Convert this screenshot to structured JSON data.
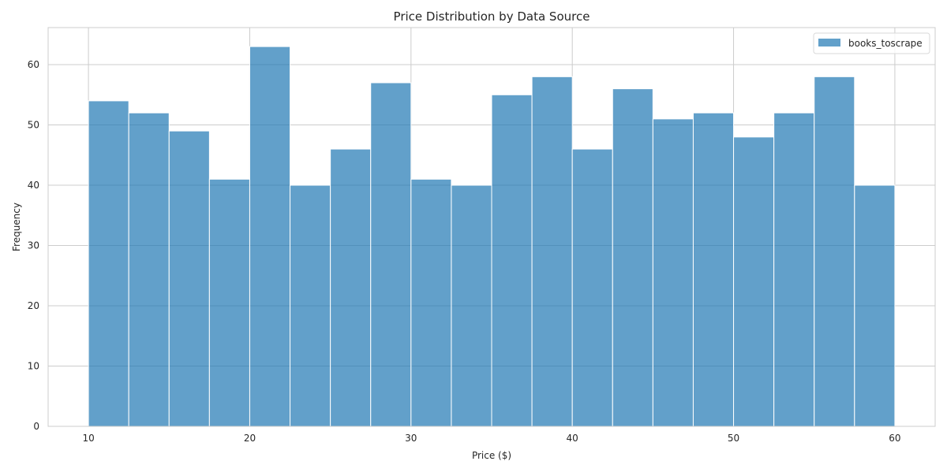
{
  "chart_data": {
    "type": "bar",
    "subtype": "histogram",
    "title": "Price Distribution by Data Source",
    "xlabel": "Price ($)",
    "ylabel": "Frequency",
    "xlim": [
      7.5,
      62.5
    ],
    "ylim": [
      0,
      66.15
    ],
    "xticks": [
      10,
      20,
      30,
      40,
      50,
      60
    ],
    "yticks": [
      0,
      10,
      20,
      30,
      40,
      50,
      60
    ],
    "grid": true,
    "legend_position": "top-right",
    "bin_edges": [
      10,
      12.5,
      15,
      17.5,
      20,
      22.5,
      25,
      27.5,
      30,
      32.5,
      35,
      37.5,
      40,
      42.5,
      45,
      47.5,
      50,
      52.5,
      55,
      57.5,
      60
    ],
    "series": [
      {
        "name": "books_toscrape",
        "color": "#1f77b4",
        "opacity": 0.7,
        "values": [
          54,
          52,
          49,
          41,
          63,
          40,
          46,
          57,
          41,
          40,
          55,
          58,
          46,
          56,
          51,
          52,
          48,
          52,
          58,
          40
        ]
      }
    ]
  }
}
